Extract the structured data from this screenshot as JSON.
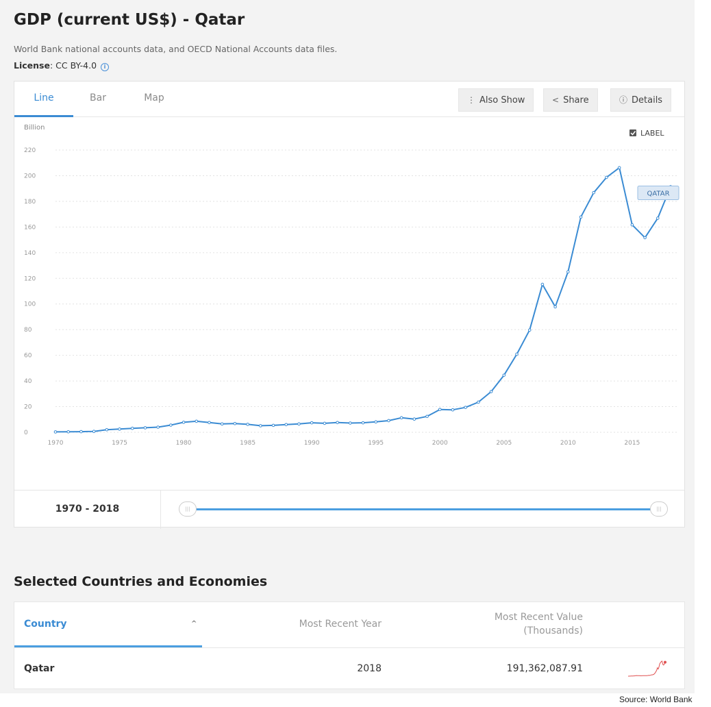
{
  "header": {
    "title": "GDP (current US$) - Qatar",
    "source_description": "World Bank national accounts data, and OECD National Accounts data files.",
    "license_label": "License",
    "license_value": ": CC BY-4.0"
  },
  "tabs": [
    {
      "label": "Line",
      "active": true
    },
    {
      "label": "Bar",
      "active": false
    },
    {
      "label": "Map",
      "active": false
    }
  ],
  "toolbar": {
    "also_show": "Also Show",
    "also_show_icon": "vertical-ellipsis-icon",
    "share": "Share",
    "share_icon": "share-icon",
    "details": "Details",
    "details_icon": "info-circle-icon"
  },
  "label_toggle": {
    "label": "LABEL",
    "checked": true
  },
  "chart_data": {
    "type": "line",
    "ylabel": "Billion",
    "ylim": [
      0,
      220
    ],
    "yticks": [
      0,
      20,
      40,
      60,
      80,
      100,
      120,
      140,
      160,
      180,
      200,
      220
    ],
    "xlim": [
      1970,
      2018
    ],
    "xticks": [
      1970,
      1975,
      1980,
      1985,
      1990,
      1995,
      2000,
      2005,
      2010,
      2015
    ],
    "grid": true,
    "series": [
      {
        "name": "QATAR",
        "color": "#3a8bd3",
        "x": [
          1970,
          1971,
          1972,
          1973,
          1974,
          1975,
          1976,
          1977,
          1978,
          1979,
          1980,
          1981,
          1982,
          1983,
          1984,
          1985,
          1986,
          1987,
          1988,
          1989,
          1990,
          1991,
          1992,
          1993,
          1994,
          1995,
          1996,
          1997,
          1998,
          1999,
          2000,
          2001,
          2002,
          2003,
          2004,
          2005,
          2006,
          2007,
          2008,
          2009,
          2010,
          2011,
          2012,
          2013,
          2014,
          2015,
          2016,
          2017,
          2018
        ],
        "values": [
          0.3,
          0.4,
          0.5,
          0.7,
          2.0,
          2.5,
          3.1,
          3.5,
          4.0,
          5.6,
          7.8,
          8.6,
          7.6,
          6.5,
          6.8,
          6.2,
          5.1,
          5.4,
          6.0,
          6.5,
          7.4,
          7.0,
          7.6,
          7.2,
          7.4,
          8.1,
          9.1,
          11.3,
          10.3,
          12.4,
          17.8,
          17.5,
          19.4,
          23.5,
          31.7,
          44.5,
          60.9,
          79.7,
          115.3,
          97.8,
          125.1,
          167.8,
          186.8,
          198.7,
          206.2,
          161.7,
          151.7,
          166.9,
          191.4
        ]
      }
    ]
  },
  "range": {
    "label": "1970 - 2018"
  },
  "section": {
    "title": "Selected Countries and Economies"
  },
  "table": {
    "headers": {
      "country": "Country",
      "year": "Most Recent Year",
      "value_line1": "Most Recent Value",
      "value_line2": "(Thousands)"
    },
    "rows": [
      {
        "country": "Qatar",
        "year": "2018",
        "value": "191,362,087.91"
      }
    ]
  },
  "sparkline_color": "#e05050",
  "footnote": "Source: World Bank"
}
